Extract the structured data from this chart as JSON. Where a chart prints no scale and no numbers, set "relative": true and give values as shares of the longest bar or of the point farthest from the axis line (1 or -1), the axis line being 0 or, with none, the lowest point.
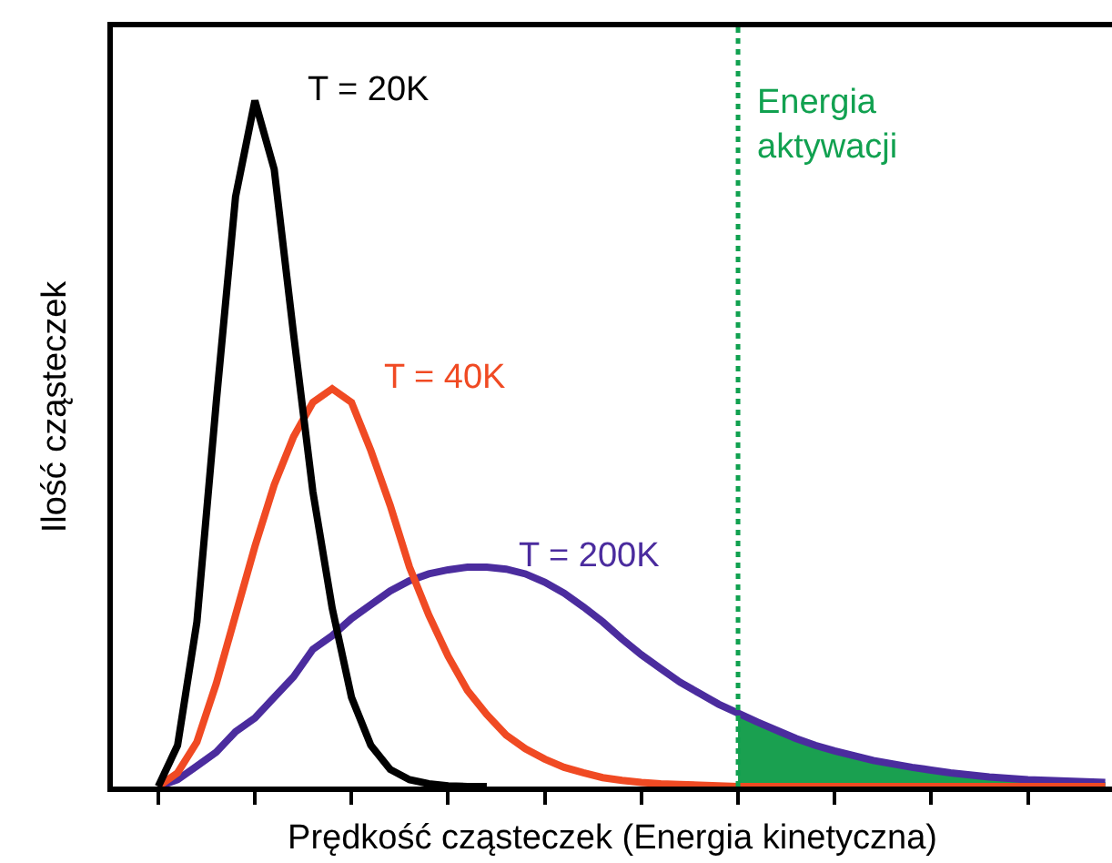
{
  "chart_data": {
    "type": "line",
    "relative": true,
    "xlabel": "Prędkość cząsteczek (Energia kinetyczna)",
    "ylabel": "Ilość cząsteczek",
    "categories": [
      null,
      null,
      null,
      null,
      null,
      null,
      null,
      null,
      null,
      null,
      null,
      null,
      null,
      null,
      null,
      null,
      null,
      null,
      null,
      null,
      null,
      null,
      null,
      null,
      null,
      null,
      null,
      null,
      null,
      null,
      null,
      null,
      null,
      null,
      null,
      null,
      null,
      null,
      null,
      null,
      null,
      null,
      null,
      null,
      null,
      null,
      null,
      null,
      null,
      null
    ],
    "series": [
      {
        "type": "area",
        "color": "#1aa050",
        "values": [
          null,
          null,
          null,
          null,
          null,
          null,
          null,
          null,
          null,
          null,
          null,
          null,
          null,
          null,
          null,
          null,
          null,
          null,
          null,
          null,
          null,
          null,
          null,
          null,
          null,
          null,
          null,
          null,
          null,
          null,
          0.107,
          0.094,
          0.082,
          0.07,
          0.06,
          0.052,
          0.045,
          0.038,
          0.033,
          0.028,
          0.024,
          0.02,
          0.017,
          0.014,
          0.012,
          0.01,
          0.009,
          0.008,
          0.007,
          0.006
        ]
      },
      {
        "name": "T = 200K",
        "color": "#4b2c9e",
        "values": [
          0,
          0.01,
          0.03,
          0.05,
          0.08,
          0.1,
          0.13,
          0.16,
          0.2,
          0.22,
          0.245,
          0.265,
          0.285,
          0.3,
          0.31,
          0.316,
          0.32,
          0.32,
          0.317,
          0.31,
          0.298,
          0.282,
          0.262,
          0.24,
          0.215,
          0.192,
          0.172,
          0.152,
          0.136,
          0.12,
          0.107,
          0.094,
          0.082,
          0.07,
          0.06,
          0.052,
          0.045,
          0.038,
          0.033,
          0.028,
          0.024,
          0.02,
          0.017,
          0.014,
          0.012,
          0.01,
          0.009,
          0.008,
          0.007,
          0.006
        ]
      },
      {
        "name": "T = 40K",
        "color": "#f04a23",
        "values": [
          0,
          0.02,
          0.065,
          0.15,
          0.25,
          0.35,
          0.44,
          0.51,
          0.56,
          0.58,
          0.56,
          0.49,
          0.41,
          0.32,
          0.25,
          0.19,
          0.14,
          0.105,
          0.075,
          0.055,
          0.04,
          0.028,
          0.02,
          0.013,
          0.009,
          0.006,
          0.004,
          0.003,
          0.002,
          0.001,
          0,
          0,
          0,
          0,
          0,
          0,
          0,
          0,
          0,
          0,
          0,
          0,
          0,
          0,
          0,
          0,
          0,
          0,
          0,
          0
        ]
      },
      {
        "name": "T = 20K",
        "color": "#000000",
        "values": [
          0,
          0.06,
          0.24,
          0.56,
          0.86,
          1.0,
          0.9,
          0.66,
          0.43,
          0.26,
          0.13,
          0.06,
          0.025,
          0.01,
          0.004,
          0.001,
          0,
          0,
          null,
          null,
          null,
          null,
          null,
          null,
          null,
          null,
          null,
          null,
          null,
          null,
          null,
          null,
          null,
          null,
          null,
          null,
          null,
          null,
          null,
          null,
          null,
          null,
          null,
          null,
          null,
          null,
          null,
          null,
          null,
          null
        ]
      }
    ],
    "ref_lines": [
      {
        "axis": "x",
        "label": "Energia\naktywacji",
        "color": "#11a150",
        "line_style": "dotted"
      }
    ]
  }
}
